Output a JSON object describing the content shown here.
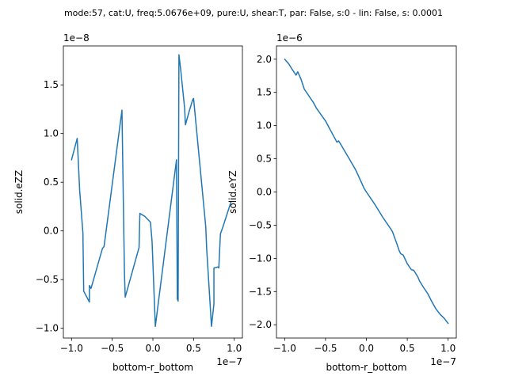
{
  "suptitle": "mode:57, cat:U, freq:5.0676e+09, pure:U, shear:T, par: False, s:0 - lin: False, s: 0.0001",
  "chart_data": [
    {
      "type": "line",
      "xlabel": "bottom-r_bottom",
      "ylabel": "solid.eZZ",
      "x_offset_text": "1e−7",
      "y_offset_text": "1e−8",
      "xlim": [
        -1.1,
        1.1
      ],
      "ylim": [
        -1.1,
        1.9
      ],
      "xticks": [
        -1.0,
        -0.5,
        0.0,
        0.5,
        1.0
      ],
      "xtick_labels": [
        "−1.0",
        "−0.5",
        "0.0",
        "0.5",
        "1.0"
      ],
      "yticks": [
        -1.0,
        -0.5,
        0.0,
        0.5,
        1.0,
        1.5
      ],
      "ytick_labels": [
        "−1.0",
        "−0.5",
        "0.0",
        "0.5",
        "1.0",
        "1.5"
      ],
      "color": "#1f77b4",
      "series": [
        {
          "x": [
            -1.0,
            -0.93,
            -0.9,
            -0.86,
            -0.85,
            -0.78,
            -0.78,
            -0.76,
            -0.62,
            -0.6,
            -0.38,
            -0.35,
            -0.34,
            -0.17,
            -0.16,
            -0.1,
            -0.03,
            -0.01,
            0.03,
            0.29,
            0.3,
            0.31,
            0.32,
            0.34,
            0.39,
            0.4,
            0.45,
            0.49,
            0.5,
            0.65,
            0.66,
            0.72,
            0.75,
            0.75,
            0.8,
            0.81,
            0.83,
            0.86,
            0.96
          ],
          "y": [
            0.73,
            0.95,
            0.42,
            -0.02,
            -0.62,
            -0.73,
            -0.56,
            -0.59,
            -0.18,
            -0.16,
            1.24,
            -0.42,
            -0.68,
            -0.17,
            0.18,
            0.15,
            0.09,
            -0.11,
            -0.98,
            0.73,
            -0.7,
            -0.72,
            1.81,
            1.67,
            1.26,
            1.09,
            1.24,
            1.35,
            1.36,
            0.04,
            -0.17,
            -0.98,
            -0.75,
            -0.38,
            -0.37,
            -0.38,
            -0.03,
            0.04,
            0.3
          ]
        }
      ]
    },
    {
      "type": "line",
      "xlabel": "bottom-r_bottom",
      "ylabel": "solid.eYZ",
      "x_offset_text": "1e−7",
      "y_offset_text": "1e−6",
      "xlim": [
        -1.1,
        1.1
      ],
      "ylim": [
        -2.2,
        2.2
      ],
      "xticks": [
        -1.0,
        -0.5,
        0.0,
        0.5,
        1.0
      ],
      "xtick_labels": [
        "−1.0",
        "−0.5",
        "0.0",
        "0.5",
        "1.0"
      ],
      "yticks": [
        -2.0,
        -1.5,
        -1.0,
        -0.5,
        0.0,
        0.5,
        1.0,
        1.5,
        2.0
      ],
      "ytick_labels": [
        "−2.0",
        "−1.5",
        "−1.0",
        "−0.5",
        "0.0",
        "0.5",
        "1.0",
        "1.5",
        "2.0"
      ],
      "color": "#1f77b4",
      "series": [
        {
          "x": [
            -1.0,
            -0.95,
            -0.91,
            -0.86,
            -0.84,
            -0.8,
            -0.76,
            -0.65,
            -0.61,
            -0.5,
            -0.4,
            -0.36,
            -0.34,
            -0.31,
            -0.2,
            -0.13,
            -0.03,
            0.0,
            0.1,
            0.2,
            0.3,
            0.32,
            0.37,
            0.4,
            0.42,
            0.45,
            0.5,
            0.55,
            0.58,
            0.63,
            0.65,
            0.7,
            0.75,
            0.8,
            0.85,
            0.9,
            0.95,
            1.0
          ],
          "y": [
            2.0,
            1.93,
            1.85,
            1.76,
            1.81,
            1.7,
            1.55,
            1.35,
            1.26,
            1.07,
            0.84,
            0.75,
            0.77,
            0.71,
            0.48,
            0.33,
            0.06,
            0.0,
            -0.18,
            -0.38,
            -0.56,
            -0.6,
            -0.77,
            -0.88,
            -0.93,
            -0.95,
            -1.08,
            -1.17,
            -1.18,
            -1.28,
            -1.34,
            -1.44,
            -1.53,
            -1.65,
            -1.76,
            -1.84,
            -1.9,
            -1.98
          ]
        }
      ]
    }
  ]
}
